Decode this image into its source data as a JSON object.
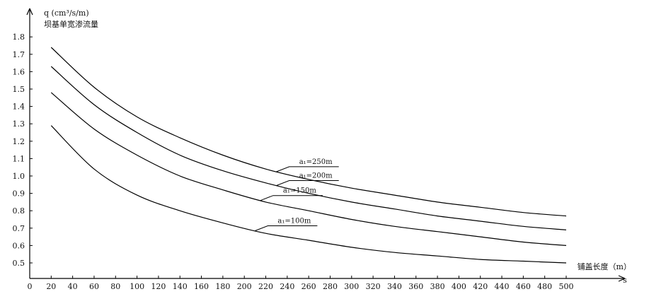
{
  "chart_data": {
    "type": "line",
    "title": "",
    "ylabel": "q (cm³/s/m)",
    "ylabel_sub": "坝基单宽渗流量",
    "xlabel": "铺盖长度（m）",
    "x_axis_symbol": "s",
    "xlim": [
      0,
      500
    ],
    "ylim": [
      0.4,
      1.8
    ],
    "x_ticks": [
      0,
      20,
      40,
      60,
      80,
      100,
      120,
      140,
      160,
      180,
      200,
      220,
      240,
      260,
      280,
      300,
      320,
      340,
      360,
      380,
      400,
      420,
      440,
      460,
      480,
      500
    ],
    "y_ticks": [
      0.5,
      0.6,
      0.7,
      0.8,
      0.9,
      1.0,
      1.1,
      1.2,
      1.3,
      1.4,
      1.5,
      1.6,
      1.7,
      1.8
    ],
    "x_tick_labels": [
      "0",
      "20",
      "40",
      "60",
      "80",
      "100",
      "120",
      "140",
      "160",
      "180",
      "200",
      "220",
      "240",
      "260",
      "280",
      "300",
      "320",
      "340",
      "360",
      "380",
      "400",
      "420",
      "440",
      "460",
      "480",
      "500"
    ],
    "y_tick_labels": [
      "0.5",
      "0.6",
      "0.7",
      "0.8",
      "0.9",
      "1.0",
      "1.1",
      "1.2",
      "1.3",
      "1.4",
      "1.5",
      "1.6",
      "1.7",
      "1.8"
    ],
    "grid": false,
    "legend": "inline labels on curves",
    "x": [
      20,
      60,
      100,
      140,
      180,
      220,
      260,
      300,
      340,
      380,
      420,
      460,
      500
    ],
    "series": [
      {
        "name": "a₁=250m",
        "values": [
          1.74,
          1.51,
          1.34,
          1.22,
          1.12,
          1.04,
          0.98,
          0.93,
          0.89,
          0.85,
          0.82,
          0.79,
          0.77
        ],
        "label_at": 230
      },
      {
        "name": "a₁=200m",
        "values": [
          1.63,
          1.41,
          1.25,
          1.12,
          1.03,
          0.96,
          0.9,
          0.85,
          0.81,
          0.77,
          0.74,
          0.71,
          0.69
        ],
        "label_at": 230
      },
      {
        "name": "a₁=150m",
        "values": [
          1.48,
          1.27,
          1.12,
          1.0,
          0.92,
          0.85,
          0.8,
          0.75,
          0.71,
          0.68,
          0.65,
          0.62,
          0.6
        ],
        "label_at": 215
      },
      {
        "name": "a₁=100m",
        "values": [
          1.29,
          1.04,
          0.89,
          0.8,
          0.73,
          0.67,
          0.63,
          0.59,
          0.56,
          0.54,
          0.52,
          0.51,
          0.5
        ],
        "label_at": 210
      }
    ]
  }
}
